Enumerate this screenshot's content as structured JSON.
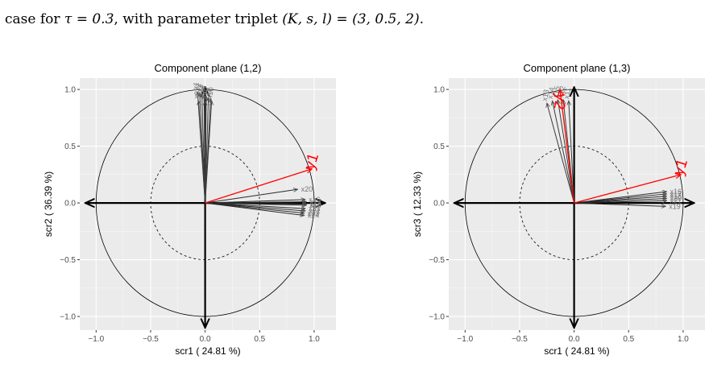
{
  "caption": {
    "prefix": "case for ",
    "tau": "τ = 0.3",
    "middle": ", with parameter triplet ",
    "triplet": "(K, s, l) = (3, 0.5, 2)",
    "suffix": "."
  },
  "chart_data": [
    {
      "type": "scatter",
      "title": "Component plane (1,2)",
      "xlabel": "scr1 ( 24.81 %)",
      "ylabel": "scr2 ( 36.39 %)",
      "xlim": [
        -1.15,
        1.2
      ],
      "ylim": [
        -1.12,
        1.1
      ],
      "xticks": [
        "-1.0",
        "-0.5",
        "0.0",
        "0.5",
        "1.0"
      ],
      "yticks": [
        "-1.0",
        "-0.5",
        "0.0",
        "0.5",
        "1.0"
      ],
      "grid": true,
      "background": "#ebebeb",
      "unit_circle": true,
      "inner_circle_radius": 0.5,
      "response_vectors": [
        {
          "name": "y1",
          "x": 0.98,
          "y": 0.3,
          "color": "#ff0000"
        }
      ],
      "predictor_vectors": [
        {
          "label": "x20",
          "x": 0.85,
          "y": 0.12
        },
        {
          "label": "x16",
          "x": 0.92,
          "y": 0.03
        },
        {
          "label": "x17",
          "x": 0.93,
          "y": 0.01
        },
        {
          "label": "x18",
          "x": 0.93,
          "y": -0.01
        },
        {
          "label": "x19",
          "x": 0.93,
          "y": -0.02
        },
        {
          "label": "x21",
          "x": 0.92,
          "y": -0.05
        },
        {
          "label": "x22",
          "x": 0.92,
          "y": -0.07
        },
        {
          "label": "x23",
          "x": 0.91,
          "y": -0.09
        },
        {
          "label": "x24",
          "x": 0.91,
          "y": -0.11
        },
        {
          "label": "x1",
          "x": -0.07,
          "y": 0.98
        },
        {
          "label": "x2",
          "x": -0.05,
          "y": 0.97
        },
        {
          "label": "x3",
          "x": -0.03,
          "y": 0.96
        },
        {
          "label": "x4",
          "x": -0.01,
          "y": 0.95
        },
        {
          "label": "x5",
          "x": 0.01,
          "y": 0.94
        },
        {
          "label": "x6",
          "x": 0.03,
          "y": 0.93
        },
        {
          "label": "x7",
          "x": 0.05,
          "y": 0.92
        },
        {
          "label": "x8",
          "x": -0.06,
          "y": 0.9
        },
        {
          "label": "x9",
          "x": 0.0,
          "y": 0.9
        },
        {
          "label": "x10",
          "x": 0.06,
          "y": 0.9
        }
      ]
    },
    {
      "type": "scatter",
      "title": "Component plane (1,3)",
      "xlabel": "scr1 ( 24.81 %)",
      "ylabel": "scr3 ( 12.33 %)",
      "xlim": [
        -1.15,
        1.2
      ],
      "ylim": [
        -1.12,
        1.1
      ],
      "xticks": [
        "-1.0",
        "-0.5",
        "0.0",
        "0.5",
        "1.0"
      ],
      "yticks": [
        "-1.0",
        "-0.5",
        "0.0",
        "0.5",
        "1.0"
      ],
      "grid": true,
      "background": "#ebebeb",
      "unit_circle": true,
      "inner_circle_radius": 0.5,
      "response_vectors": [
        {
          "name": "y1",
          "x": 0.98,
          "y": 0.25,
          "color": "#ff0000"
        },
        {
          "name": "y2",
          "x": -0.13,
          "y": 1.0,
          "color": "#ff0000"
        }
      ],
      "predictor_vectors": [
        {
          "label": "x13",
          "x": -0.25,
          "y": 0.88
        },
        {
          "label": "x14",
          "x": -0.2,
          "y": 0.9
        },
        {
          "label": "x15",
          "x": -0.15,
          "y": 0.91
        },
        {
          "label": "x12",
          "x": -0.1,
          "y": 0.91
        },
        {
          "label": "x11",
          "x": -0.05,
          "y": 0.9
        },
        {
          "label": "x16",
          "x": 0.85,
          "y": 0.1
        },
        {
          "label": "x17",
          "x": 0.85,
          "y": 0.08
        },
        {
          "label": "x18",
          "x": 0.85,
          "y": 0.06
        },
        {
          "label": "x20",
          "x": 0.85,
          "y": 0.04
        },
        {
          "label": "x21",
          "x": 0.85,
          "y": 0.02
        },
        {
          "label": "x19",
          "x": 0.84,
          "y": -0.03
        }
      ]
    }
  ]
}
